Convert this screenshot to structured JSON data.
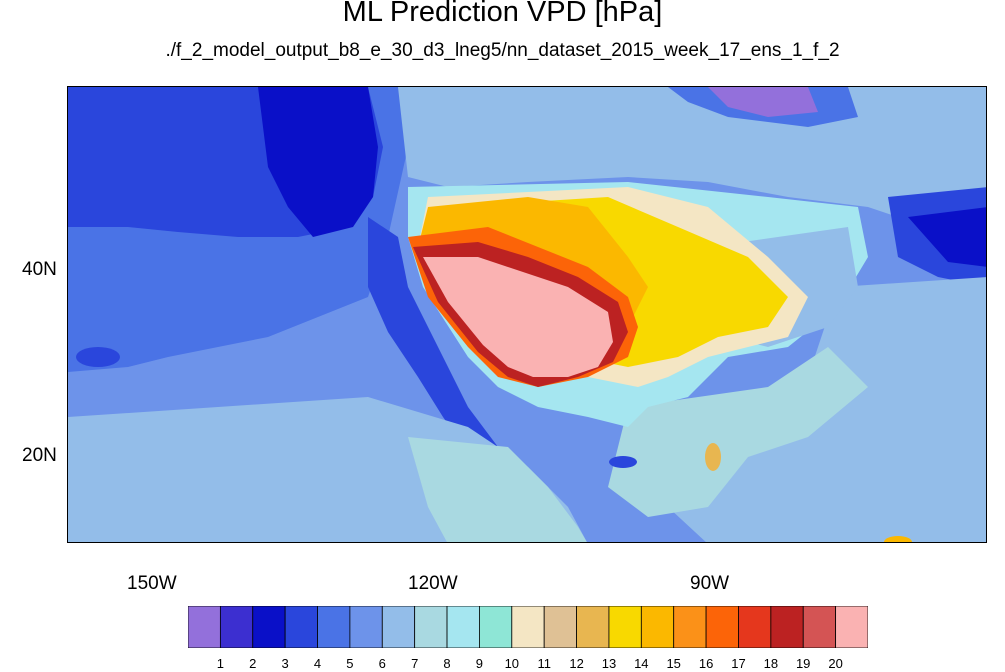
{
  "title": "ML Prediction VPD [hPa]",
  "subtitle": "./f_2_model_output_b8_e_30_d3_lneg5/nn_dataset_2015_week_17_ens_1_f_2",
  "axes": {
    "x_ticks": [
      "150W",
      "120W",
      "90W"
    ],
    "y_ticks": [
      "40N",
      "20N"
    ]
  },
  "colorbar": {
    "labels": [
      "1",
      "2",
      "3",
      "4",
      "5",
      "6",
      "7",
      "8",
      "9",
      "10",
      "11",
      "12",
      "13",
      "14",
      "15",
      "16",
      "17",
      "18",
      "19",
      "20"
    ],
    "colors": [
      "#9370db",
      "#3c2fd0",
      "#0a10c8",
      "#2a46dc",
      "#4a73e6",
      "#6d93ea",
      "#93bde9",
      "#a9d9e1",
      "#a5e6f0",
      "#8ee6d6",
      "#f4e6c4",
      "#dfc195",
      "#e8b650",
      "#f8d900",
      "#fbb800",
      "#fb9118",
      "#fc6408",
      "#e5371d",
      "#bc2222",
      "#d45454",
      "#fab2b2"
    ]
  },
  "map_colors": {
    "ocean_deep": "#4a73e6",
    "ocean_mid": "#6d93ea",
    "ocean_light": "#93bde9",
    "ocean_pale": "#a9d9e1",
    "low_dark": "#2a46dc",
    "low_darker": "#0a10c8",
    "purple": "#9370db"
  }
}
